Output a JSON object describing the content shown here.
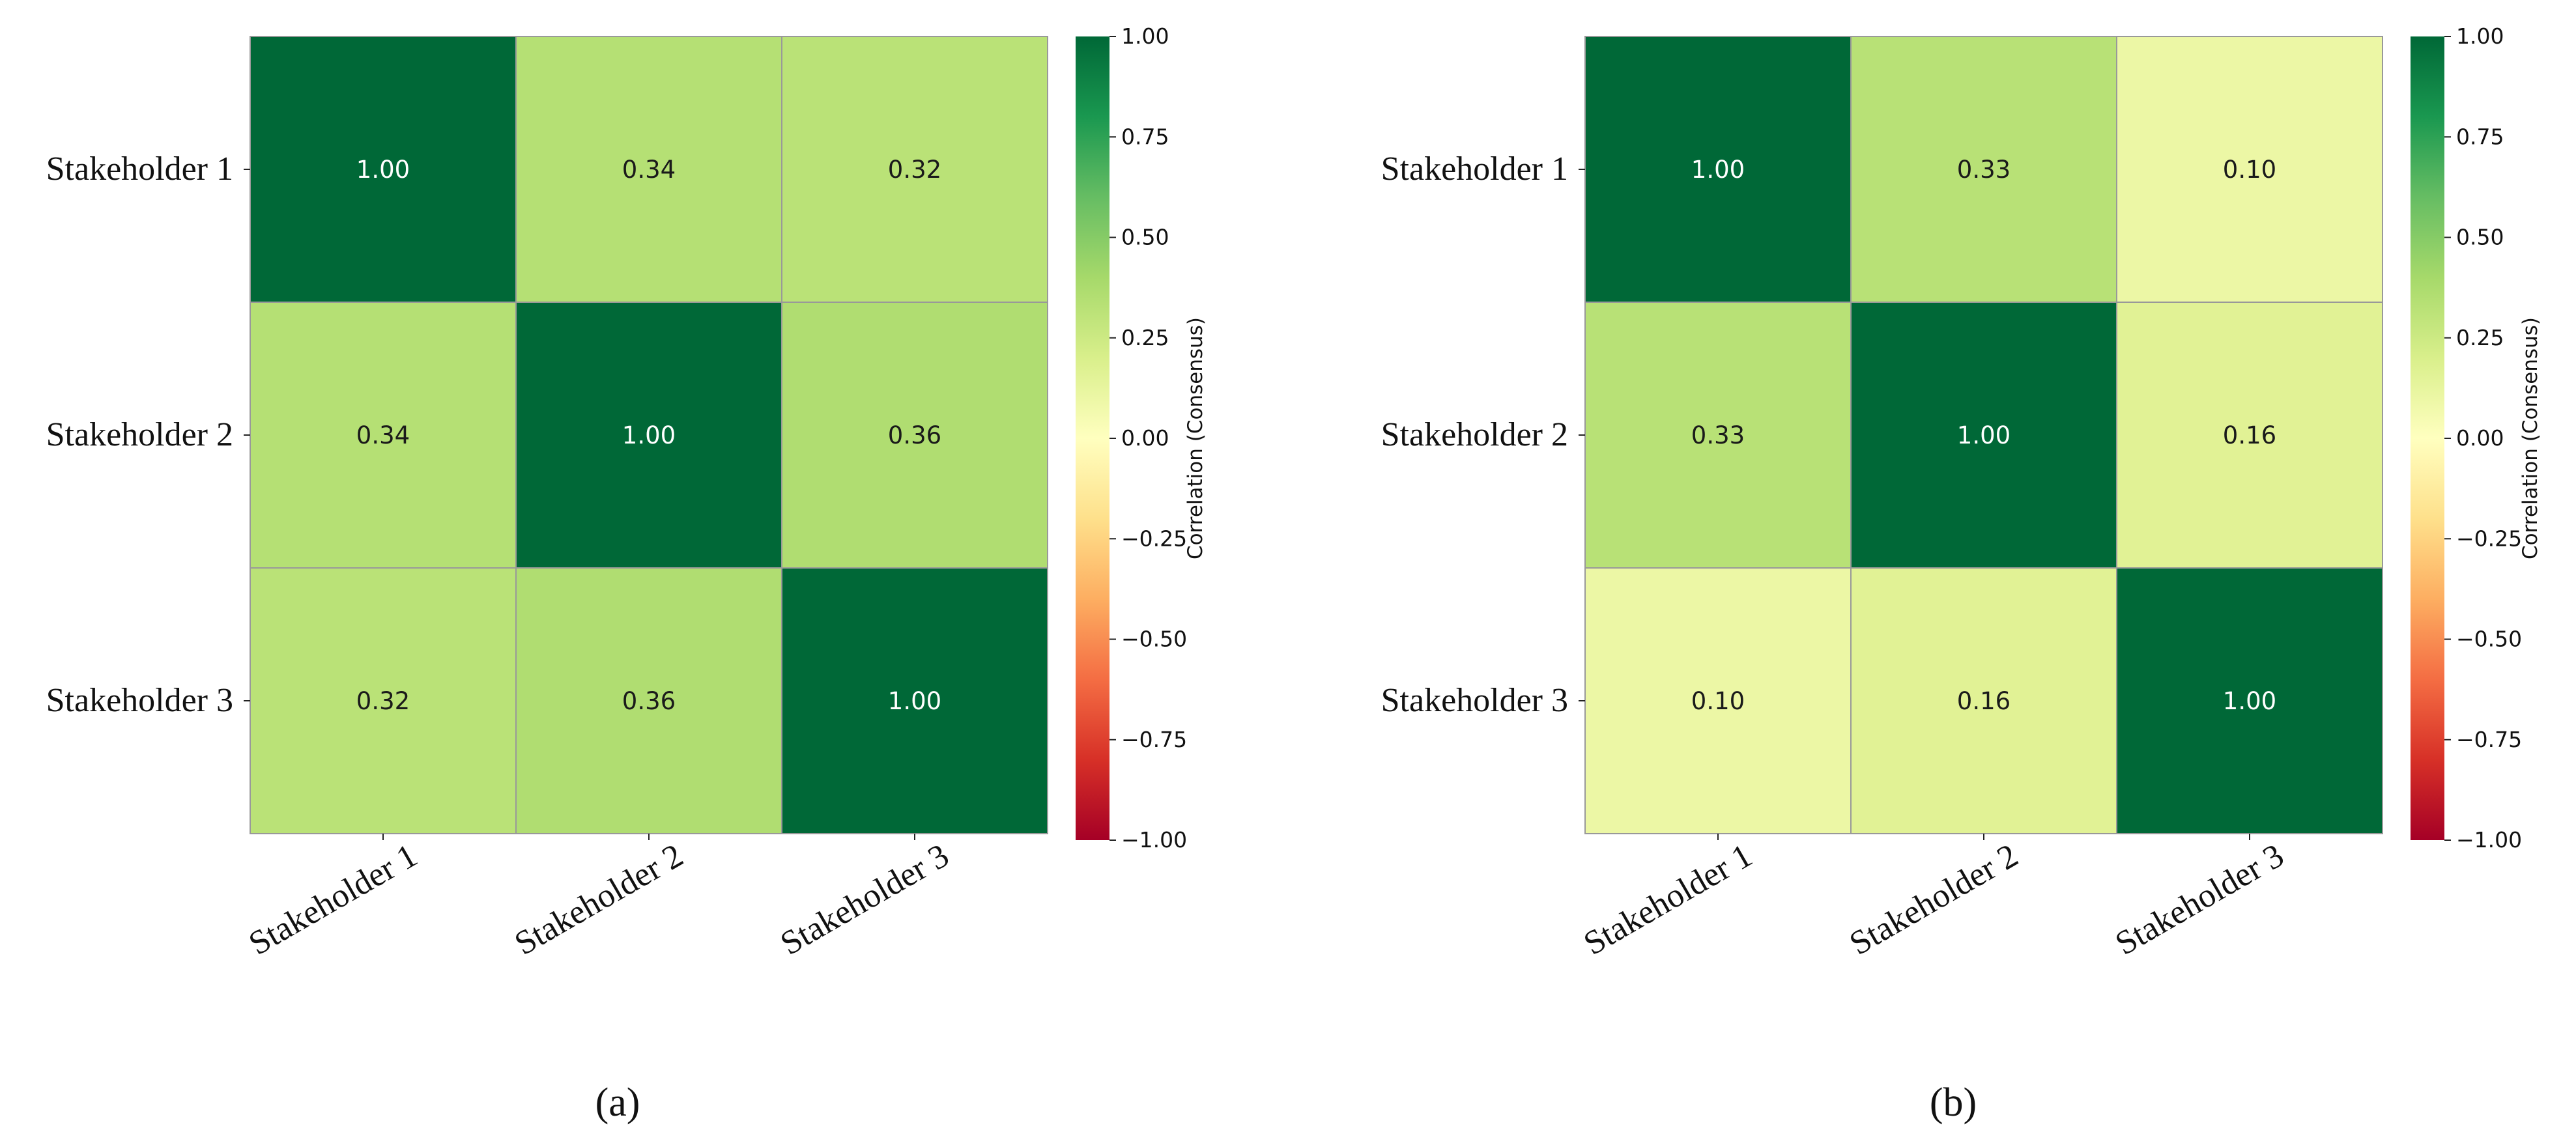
{
  "figure": {
    "panels": [
      "(a)",
      "(b)"
    ]
  },
  "chart_data": [
    {
      "type": "heatmap",
      "panel_label": "(a)",
      "row_labels": [
        "Stakeholder 1",
        "Stakeholder 2",
        "Stakeholder 3"
      ],
      "col_labels": [
        "Stakeholder 1",
        "Stakeholder 2",
        "Stakeholder 3"
      ],
      "values": [
        [
          1.0,
          0.34,
          0.32
        ],
        [
          0.34,
          1.0,
          0.36
        ],
        [
          0.32,
          0.36,
          1.0
        ]
      ],
      "value_format": "0.00",
      "colorbar": {
        "label": "Correlation (Consensus)",
        "range": [
          -1,
          1
        ],
        "colormap": "RdYlGn",
        "ticks": [
          "1.00",
          "0.75",
          "0.50",
          "0.25",
          "0.00",
          "−0.25",
          "−0.50",
          "−0.75",
          "−1.00"
        ],
        "tick_values": [
          1.0,
          0.75,
          0.5,
          0.25,
          0.0,
          -0.25,
          -0.5,
          -0.75,
          -1.0
        ]
      }
    },
    {
      "type": "heatmap",
      "panel_label": "(b)",
      "row_labels": [
        "Stakeholder 1",
        "Stakeholder 2",
        "Stakeholder 3"
      ],
      "col_labels": [
        "Stakeholder 1",
        "Stakeholder 2",
        "Stakeholder 3"
      ],
      "values": [
        [
          1.0,
          0.33,
          0.1
        ],
        [
          0.33,
          1.0,
          0.16
        ],
        [
          0.1,
          0.16,
          1.0
        ]
      ],
      "value_format": "0.00",
      "colorbar": {
        "label": "Correlation (Consensus)",
        "range": [
          -1,
          1
        ],
        "colormap": "RdYlGn",
        "ticks": [
          "1.00",
          "0.75",
          "0.50",
          "0.25",
          "0.00",
          "−0.25",
          "−0.50",
          "−0.75",
          "−1.00"
        ],
        "tick_values": [
          1.0,
          0.75,
          0.5,
          0.25,
          0.0,
          -0.25,
          -0.5,
          -0.75,
          -1.0
        ]
      }
    }
  ],
  "colors": {
    "gridline": "#999999",
    "text_dark": "#1a1a1a",
    "text_light": "#ffffff"
  }
}
